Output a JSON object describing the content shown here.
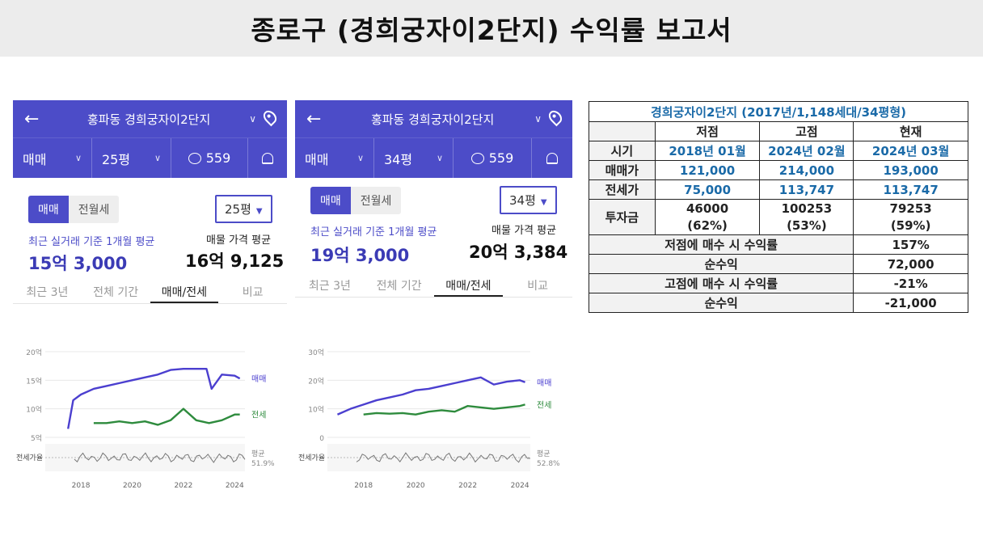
{
  "banner": {
    "title": "종로구 (경희궁자이2단지) 수익률 보고서"
  },
  "phone1": {
    "header_title": "홍파동 경희궁자이2단지",
    "trade_type": "매매",
    "size": "25평",
    "comment_count": "559",
    "toggle": [
      "매매",
      "전월세"
    ],
    "size_dropdown": "25평",
    "recent_label": "최근 실거래 기준 1개월 평균",
    "recent_price": "15억 3,000",
    "listing_label": "매물 가격 평균",
    "listing_price": "16억 9,125",
    "tabs": [
      "최근 3년",
      "전체 기간",
      "매매/전세",
      "비교"
    ],
    "active_tab": "매매/전세"
  },
  "phone2": {
    "header_title": "홍파동 경희궁자이2단지",
    "trade_type": "매매",
    "size": "34평",
    "comment_count": "559",
    "toggle": [
      "매매",
      "전월세"
    ],
    "size_dropdown": "34평",
    "recent_label": "최근 실거래 기준 1개월 평균",
    "recent_price": "19억 3,000",
    "listing_label": "매물 가격 평균",
    "listing_price": "20억 3,384",
    "tabs": [
      "최근 3년",
      "전체 기간",
      "매매/전세",
      "비교"
    ],
    "active_tab": "매매/전세"
  },
  "chart_data": [
    {
      "type": "line",
      "x_ticks": [
        "2018",
        "2020",
        "2022",
        "2024"
      ],
      "y_ticks": [
        "20억",
        "15억",
        "10억",
        "5억"
      ],
      "ylim": [
        5,
        20
      ],
      "series": [
        {
          "name": "매매",
          "color": "#4b3fcf",
          "x": [
            2017.5,
            2017.7,
            2018.0,
            2018.5,
            2019.0,
            2019.5,
            2020.0,
            2020.5,
            2021.0,
            2021.5,
            2022.0,
            2022.5,
            2022.9,
            2023.1,
            2023.5,
            2024.0,
            2024.2
          ],
          "values": [
            6.5,
            11.5,
            12.5,
            13.5,
            14,
            14.5,
            15,
            15.5,
            16,
            16.8,
            17,
            17,
            17,
            13.5,
            16,
            15.8,
            15.3
          ]
        },
        {
          "name": "전세",
          "color": "#2e8b3d",
          "x": [
            2018.5,
            2019.0,
            2019.5,
            2020.0,
            2020.5,
            2021.0,
            2021.5,
            2022.0,
            2022.5,
            2023.0,
            2023.5,
            2024.0,
            2024.2
          ],
          "values": [
            7.5,
            7.5,
            7.8,
            7.5,
            7.8,
            7.2,
            8,
            10,
            8,
            7.5,
            8,
            9,
            9
          ]
        }
      ],
      "ratio_label": "전세가율",
      "ratio_avg_label": "평균",
      "ratio_avg": "51.9%"
    },
    {
      "type": "line",
      "x_ticks": [
        "2018",
        "2020",
        "2022",
        "2024"
      ],
      "y_ticks": [
        "30억",
        "20억",
        "10억",
        "0"
      ],
      "ylim": [
        0,
        30
      ],
      "series": [
        {
          "name": "매매",
          "color": "#4b3fcf",
          "x": [
            2017.0,
            2017.5,
            2018.0,
            2018.5,
            2019.0,
            2019.5,
            2020.0,
            2020.5,
            2021.0,
            2021.5,
            2022.0,
            2022.5,
            2023.0,
            2023.5,
            2024.0,
            2024.2
          ],
          "values": [
            8,
            10,
            11.5,
            13,
            14,
            15,
            16.5,
            17,
            18,
            19,
            20,
            21,
            18.5,
            19.5,
            20,
            19.3
          ]
        },
        {
          "name": "전세",
          "color": "#2e8b3d",
          "x": [
            2018.0,
            2018.5,
            2019.0,
            2019.5,
            2020.0,
            2020.5,
            2021.0,
            2021.5,
            2022.0,
            2022.5,
            2023.0,
            2023.5,
            2024.0,
            2024.2
          ],
          "values": [
            8,
            8.5,
            8.3,
            8.5,
            8,
            9,
            9.5,
            9,
            11,
            10.5,
            10,
            10.5,
            11,
            11.5
          ]
        }
      ],
      "ratio_label": "전세가율",
      "ratio_avg_label": "평균",
      "ratio_avg": "52.8%"
    }
  ],
  "table": {
    "caption": "경희궁자이2단지 (2017년/1,148세대/34평형)",
    "columns": [
      "",
      "저점",
      "고점",
      "현재"
    ],
    "rows": [
      {
        "label": "시기",
        "values": [
          "2018년 01월",
          "2024년 02월",
          "2024년 03월"
        ]
      },
      {
        "label": "매매가",
        "values": [
          "121,000",
          "214,000",
          "193,000"
        ]
      },
      {
        "label": "전세가",
        "values": [
          "75,000",
          "113,747",
          "113,747"
        ]
      }
    ],
    "investment": {
      "label": "투자금",
      "values": [
        "46000",
        "100253",
        "79253"
      ],
      "pcts": [
        "(62%)",
        "(53%)",
        "(59%)"
      ]
    },
    "summary": [
      {
        "label": "저점에 매수 시 수익률",
        "value": "157%"
      },
      {
        "label": "순수익",
        "value": "72,000"
      },
      {
        "label": "고점에 매수 시 수익률",
        "value": "-21%"
      },
      {
        "label": "순수익",
        "value": "-21,000"
      }
    ]
  }
}
